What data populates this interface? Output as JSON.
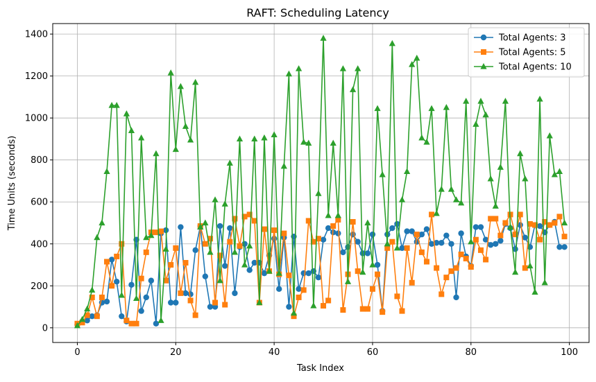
{
  "chart_data": {
    "type": "line",
    "title": "RAFT: Scheduling Latency",
    "xlabel": "Task Index",
    "ylabel": "Time Units (seconds)",
    "xlim": [
      -5,
      104
    ],
    "ylim": [
      -70,
      1450
    ],
    "xticks": [
      0,
      20,
      40,
      60,
      80,
      100
    ],
    "yticks": [
      0,
      200,
      400,
      600,
      800,
      1000,
      1200,
      1400
    ],
    "grid": true,
    "legend_position": "top-right",
    "x": [
      0,
      1,
      2,
      3,
      4,
      5,
      6,
      7,
      8,
      9,
      10,
      11,
      12,
      13,
      14,
      15,
      16,
      17,
      18,
      19,
      20,
      21,
      22,
      23,
      24,
      25,
      26,
      27,
      28,
      29,
      30,
      31,
      32,
      33,
      34,
      35,
      36,
      37,
      38,
      39,
      40,
      41,
      42,
      43,
      44,
      45,
      46,
      47,
      48,
      49,
      50,
      51,
      52,
      53,
      54,
      55,
      56,
      57,
      58,
      59,
      60,
      61,
      62,
      63,
      64,
      65,
      66,
      67,
      68,
      69,
      70,
      71,
      72,
      73,
      74,
      75,
      76,
      77,
      78,
      79,
      80,
      81,
      82,
      83,
      84,
      85,
      86,
      87,
      88,
      89,
      90,
      91,
      92,
      93,
      94,
      95,
      96,
      97,
      98,
      99
    ],
    "series": [
      {
        "name": "Total Agents: 3",
        "color": "#1f77b4",
        "marker": "circle",
        "values": [
          15,
          30,
          35,
          55,
          60,
          120,
          125,
          325,
          220,
          55,
          30,
          205,
          420,
          80,
          145,
          225,
          20,
          450,
          465,
          120,
          120,
          480,
          165,
          160,
          370,
          485,
          245,
          100,
          100,
          485,
          295,
          475,
          165,
          385,
          400,
          275,
          310,
          310,
          260,
          345,
          425,
          185,
          430,
          100,
          435,
          185,
          260,
          260,
          270,
          240,
          420,
          475,
          455,
          450,
          360,
          385,
          445,
          410,
          355,
          355,
          445,
          300,
          80,
          445,
          475,
          495,
          380,
          460,
          460,
          410,
          445,
          470,
          400,
          405,
          405,
          440,
          400,
          145,
          450,
          340,
          295,
          480,
          480,
          420,
          395,
          400,
          415,
          495,
          475,
          375,
          490,
          430,
          385,
          490,
          485,
          455,
          490,
          505,
          385,
          385
        ]
      },
      {
        "name": "Total Agents: 5",
        "color": "#ff7f0e",
        "marker": "square",
        "values": [
          20,
          25,
          60,
          145,
          55,
          145,
          315,
          200,
          340,
          400,
          35,
          20,
          20,
          235,
          360,
          455,
          455,
          460,
          225,
          300,
          380,
          165,
          310,
          130,
          60,
          485,
          400,
          425,
          120,
          345,
          110,
          410,
          520,
          390,
          530,
          540,
          510,
          120,
          470,
          270,
          465,
          255,
          450,
          250,
          55,
          145,
          180,
          510,
          410,
          425,
          105,
          130,
          485,
          515,
          85,
          255,
          505,
          270,
          90,
          90,
          185,
          255,
          75,
          380,
          410,
          150,
          80,
          380,
          215,
          445,
          360,
          315,
          540,
          285,
          160,
          240,
          270,
          285,
          350,
          330,
          290,
          420,
          370,
          325,
          520,
          520,
          440,
          500,
          540,
          445,
          540,
          285,
          495,
          490,
          420,
          505,
          490,
          500,
          530,
          435
        ]
      },
      {
        "name": "Total Agents: 10",
        "color": "#2ca02c",
        "marker": "triangle",
        "values": [
          10,
          40,
          90,
          180,
          430,
          500,
          745,
          1060,
          1060,
          155,
          1020,
          940,
          140,
          905,
          430,
          440,
          830,
          35,
          375,
          1215,
          850,
          1150,
          960,
          895,
          1170,
          480,
          500,
          360,
          610,
          225,
          590,
          785,
          360,
          900,
          300,
          390,
          900,
          120,
          905,
          270,
          920,
          260,
          770,
          1210,
          70,
          1235,
          885,
          880,
          105,
          640,
          1380,
          535,
          880,
          535,
          1235,
          220,
          1135,
          1235,
          265,
          500,
          300,
          1045,
          730,
          400,
          1355,
          380,
          610,
          745,
          1255,
          1285,
          905,
          885,
          1045,
          545,
          660,
          1050,
          660,
          610,
          595,
          1080,
          410,
          970,
          1080,
          1015,
          710,
          580,
          765,
          1080,
          480,
          265,
          830,
          710,
          295,
          170,
          1090,
          215,
          915,
          730,
          745,
          500
        ]
      }
    ]
  }
}
